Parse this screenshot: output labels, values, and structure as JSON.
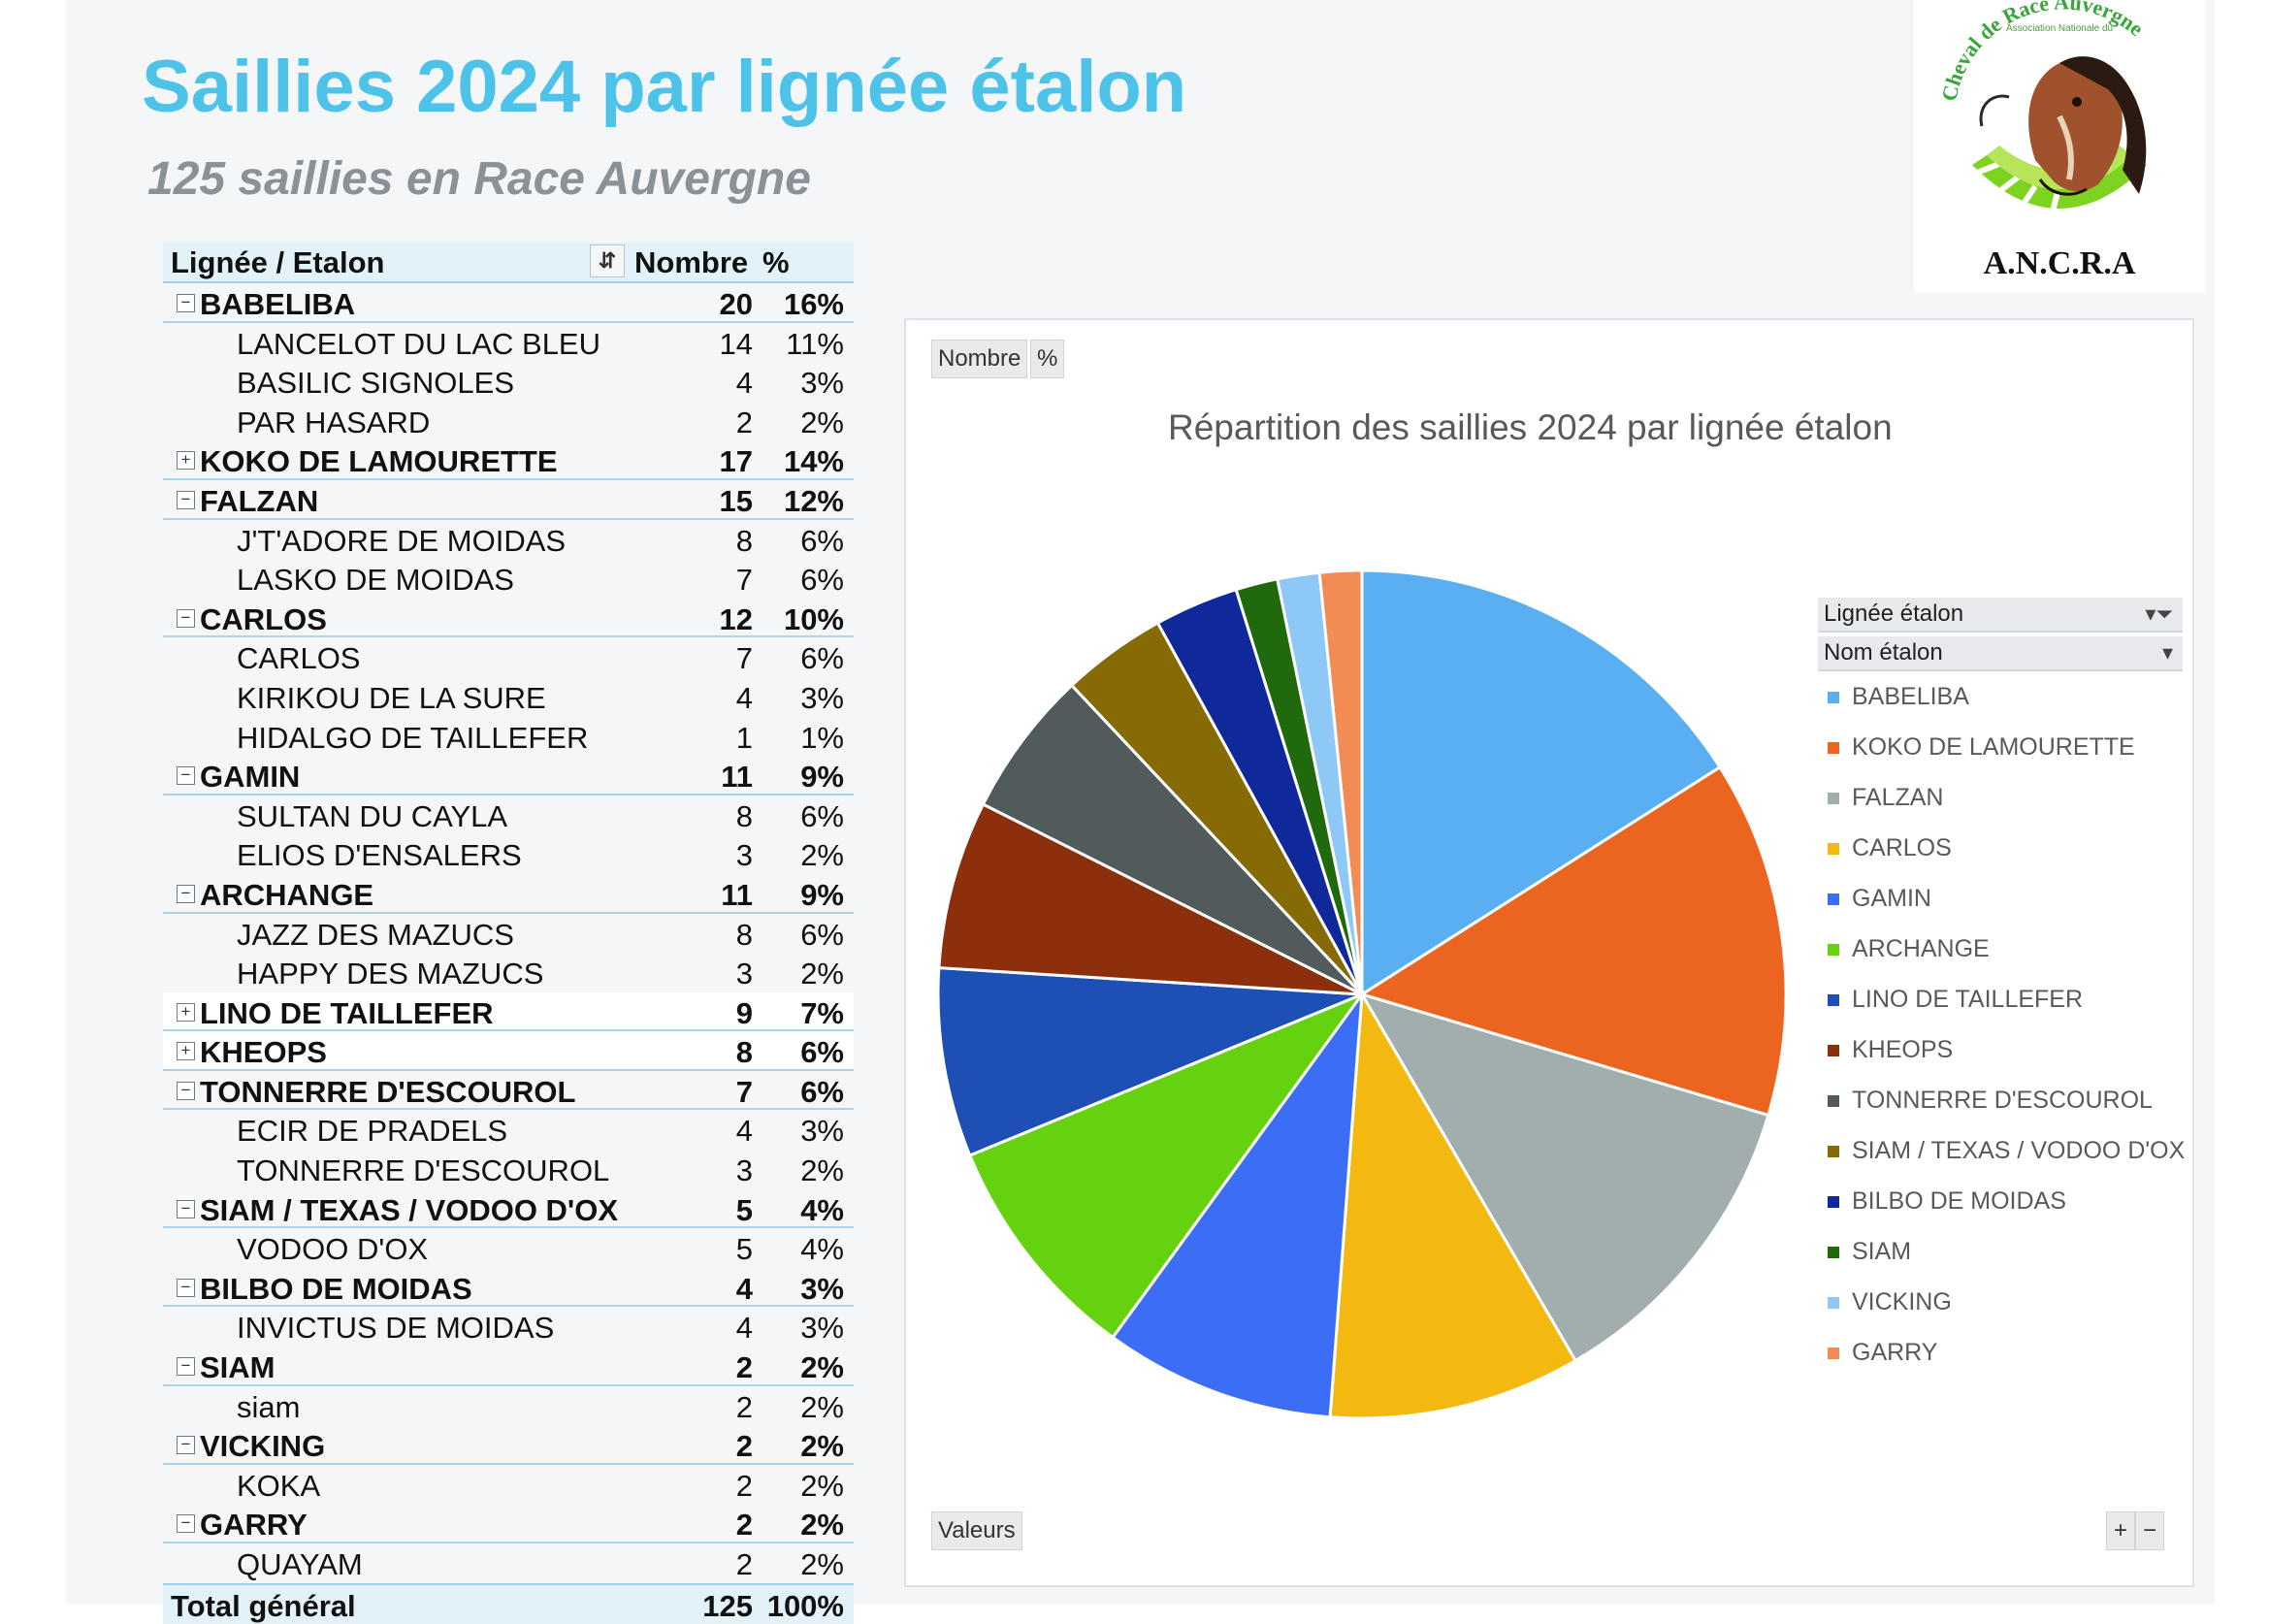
{
  "title": "Saillies 2024 par lignée étalon",
  "subtitle": "125 saillies en Race Auvergne",
  "logo": {
    "arc_text": "Association Nationale du Cheval de Race Auvergne",
    "acronym": "A.N.C.R.A"
  },
  "table": {
    "headers": {
      "label": "Lignée / Etalon",
      "count": "Nombre",
      "pct": "%"
    },
    "filter_icon": "sort-filter-icon",
    "groups": [
      {
        "name": "BABELIBA",
        "count": "20",
        "pct": "16%",
        "expanded": true,
        "children": [
          {
            "name": "LANCELOT DU LAC BLEU",
            "count": "14",
            "pct": "11%"
          },
          {
            "name": "BASILIC SIGNOLES",
            "count": "4",
            "pct": "3%"
          },
          {
            "name": "PAR HASARD",
            "count": "2",
            "pct": "2%"
          }
        ]
      },
      {
        "name": "KOKO DE LAMOURETTE",
        "count": "17",
        "pct": "14%",
        "expanded": false,
        "children": []
      },
      {
        "name": "FALZAN",
        "count": "15",
        "pct": "12%",
        "expanded": true,
        "children": [
          {
            "name": "J'T'ADORE DE MOIDAS",
            "count": "8",
            "pct": "6%"
          },
          {
            "name": "LASKO DE MOIDAS",
            "count": "7",
            "pct": "6%"
          }
        ]
      },
      {
        "name": "CARLOS",
        "count": "12",
        "pct": "10%",
        "expanded": true,
        "children": [
          {
            "name": "CARLOS",
            "count": "7",
            "pct": "6%"
          },
          {
            "name": "KIRIKOU DE LA SURE",
            "count": "4",
            "pct": "3%"
          },
          {
            "name": "HIDALGO DE TAILLEFER",
            "count": "1",
            "pct": "1%"
          }
        ]
      },
      {
        "name": "GAMIN",
        "count": "11",
        "pct": "9%",
        "expanded": true,
        "children": [
          {
            "name": "SULTAN DU CAYLA",
            "count": "8",
            "pct": "6%"
          },
          {
            "name": "ELIOS D'ENSALERS",
            "count": "3",
            "pct": "2%"
          }
        ]
      },
      {
        "name": "ARCHANGE",
        "count": "11",
        "pct": "9%",
        "expanded": true,
        "children": [
          {
            "name": "JAZZ DES MAZUCS",
            "count": "8",
            "pct": "6%"
          },
          {
            "name": "HAPPY DES MAZUCS",
            "count": "3",
            "pct": "2%"
          }
        ]
      },
      {
        "name": "LINO DE TAILLEFER",
        "count": "9",
        "pct": "7%",
        "expanded": false,
        "children": []
      },
      {
        "name": "KHEOPS",
        "count": "8",
        "pct": "6%",
        "expanded": false,
        "children": []
      },
      {
        "name": "TONNERRE D'ESCOUROL",
        "count": "7",
        "pct": "6%",
        "expanded": true,
        "children": [
          {
            "name": "ECIR DE PRADELS",
            "count": "4",
            "pct": "3%"
          },
          {
            "name": "TONNERRE D'ESCOUROL",
            "count": "3",
            "pct": "2%"
          }
        ]
      },
      {
        "name": "SIAM / TEXAS / VODOO D'OX",
        "count": "5",
        "pct": "4%",
        "expanded": true,
        "children": [
          {
            "name": "VODOO D'OX",
            "count": "5",
            "pct": "4%"
          }
        ]
      },
      {
        "name": "BILBO DE MOIDAS",
        "count": "4",
        "pct": "3%",
        "expanded": true,
        "children": [
          {
            "name": "INVICTUS DE MOIDAS",
            "count": "4",
            "pct": "3%"
          }
        ]
      },
      {
        "name": "SIAM",
        "count": "2",
        "pct": "2%",
        "expanded": true,
        "children": [
          {
            "name": "siam",
            "count": "2",
            "pct": "2%"
          }
        ]
      },
      {
        "name": "VICKING",
        "count": "2",
        "pct": "2%",
        "expanded": true,
        "children": [
          {
            "name": "KOKA",
            "count": "2",
            "pct": "2%"
          }
        ]
      },
      {
        "name": "GARRY",
        "count": "2",
        "pct": "2%",
        "expanded": true,
        "children": [
          {
            "name": "QUAYAM",
            "count": "2",
            "pct": "2%"
          }
        ]
      }
    ],
    "total": {
      "label": "Total général",
      "count": "125",
      "pct": "100%"
    }
  },
  "chart_panel": {
    "buttons": {
      "count": "Nombre",
      "pct": "%",
      "values": "Valeurs",
      "plus": "+",
      "minus": "−"
    },
    "legend_filters": {
      "line": "Lignée étalon",
      "name": "Nom étalon",
      "filter_icon": "filter-icon",
      "dropdown_icon": "chevron-down-icon"
    }
  },
  "chart_data": {
    "type": "pie",
    "title": "Répartition des saillies 2024 par lignée étalon",
    "legend_position": "right",
    "labels": [
      "BABELIBA",
      "KOKO DE LAMOURETTE",
      "FALZAN",
      "CARLOS",
      "GAMIN",
      "ARCHANGE",
      "LINO DE TAILLEFER",
      "KHEOPS",
      "TONNERRE D'ESCOUROL",
      "SIAM / TEXAS / VODOO D'OX",
      "BILBO DE MOIDAS",
      "SIAM",
      "VICKING",
      "GARRY"
    ],
    "values": [
      20,
      17,
      15,
      12,
      11,
      11,
      9,
      8,
      7,
      5,
      4,
      2,
      2,
      2
    ],
    "colors": [
      "#5aaef2",
      "#ec6520",
      "#a2aeae",
      "#f4b911",
      "#3c6ef5",
      "#64d20e",
      "#1d4fb4",
      "#8c2f0c",
      "#515b5b",
      "#866a05",
      "#10299a",
      "#206a0d",
      "#8ec8f6",
      "#f28b54"
    ]
  }
}
